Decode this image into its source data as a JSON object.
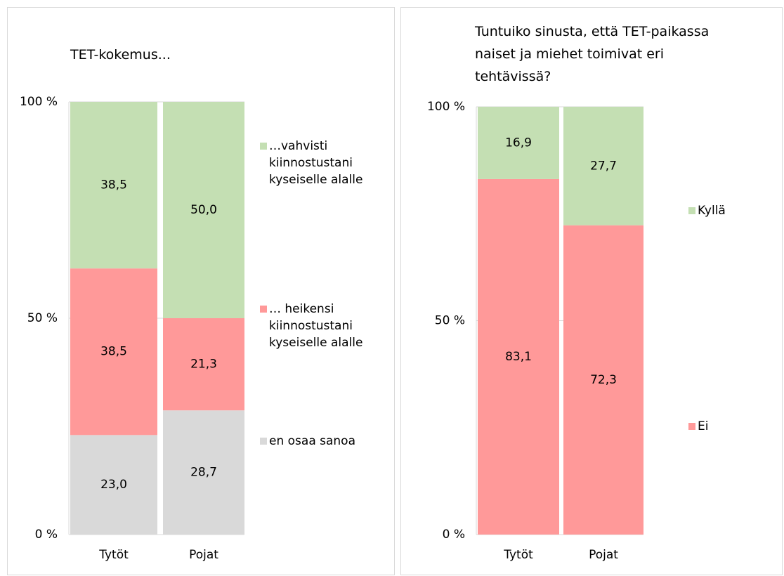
{
  "chart_data": [
    {
      "type": "stacked_bar",
      "title": "TET-kokemus...",
      "categories": [
        "Tytöt",
        "Pojat"
      ],
      "series": [
        {
          "name": "en osaa sanoa",
          "color": "#d9d9d9",
          "values": [
            23.0,
            28.7
          ],
          "value_labels": [
            "23,0",
            "28,7"
          ]
        },
        {
          "name": "… heikensi kiinnostustani kyseiselle alalle",
          "color": "#ff9999",
          "values": [
            38.5,
            21.3
          ],
          "value_labels": [
            "38,5",
            "21,3"
          ]
        },
        {
          "name": "…vahvisti kiinnostustani kyseiselle alalle",
          "color": "#c4dfb3",
          "values": [
            38.5,
            50.0
          ],
          "value_labels": [
            "38,5",
            "50,0"
          ]
        }
      ],
      "ylim": [
        0,
        100
      ],
      "yticks": [
        {
          "value": 0,
          "label": "0 %"
        },
        {
          "value": 50,
          "label": "50 %"
        },
        {
          "value": 100,
          "label": "100 %"
        }
      ],
      "grid": true,
      "legend": "right"
    },
    {
      "type": "stacked_bar",
      "title": "Tuntuiko sinusta, että TET-paikassa naiset ja miehet toimivat eri tehtävissä?",
      "categories": [
        "Tytöt",
        "Pojat"
      ],
      "series": [
        {
          "name": "Ei",
          "color": "#ff9999",
          "values": [
            83.1,
            72.3
          ],
          "value_labels": [
            "83,1",
            "72,3"
          ]
        },
        {
          "name": "Kyllä",
          "color": "#c4dfb3",
          "values": [
            16.9,
            27.7
          ],
          "value_labels": [
            "16,9",
            "27,7"
          ]
        }
      ],
      "ylim": [
        0,
        100
      ],
      "yticks": [
        {
          "value": 0,
          "label": "0 %"
        },
        {
          "value": 50,
          "label": "50 %"
        },
        {
          "value": 100,
          "label": "100 %"
        }
      ],
      "grid": true,
      "legend": "right"
    }
  ]
}
